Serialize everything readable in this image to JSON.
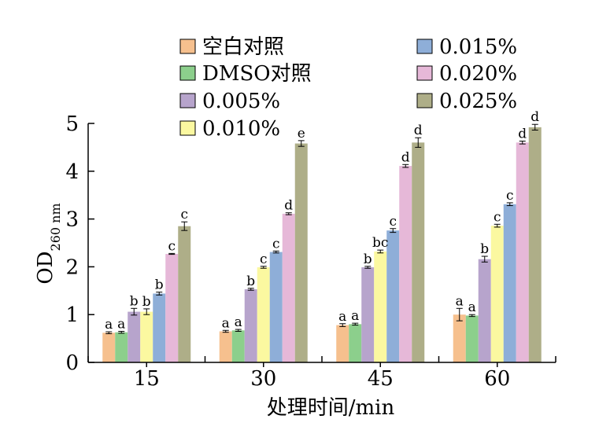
{
  "chart_data": {
    "type": "bar",
    "title": "",
    "xlabel": "处理时间/min",
    "ylabel": {
      "main": "OD",
      "sub": "260 nm"
    },
    "ylim": [
      0,
      5
    ],
    "yticks": [
      "0",
      "1",
      "2",
      "3",
      "4",
      "5"
    ],
    "categories": [
      "15",
      "30",
      "45",
      "60"
    ],
    "legend_position": "top",
    "series": [
      {
        "name": "空白对照",
        "color": "#f6c08e",
        "values": [
          0.62,
          0.65,
          0.78,
          1.0
        ],
        "errors": [
          0.02,
          0.02,
          0.03,
          0.13
        ],
        "labels": [
          "a",
          "a",
          "a",
          "a"
        ]
      },
      {
        "name": "DMSO对照",
        "color": "#8ccf8c",
        "values": [
          0.63,
          0.67,
          0.8,
          0.98
        ],
        "errors": [
          0.02,
          0.02,
          0.02,
          0.02
        ],
        "labels": [
          "a",
          "a",
          "a",
          "a"
        ]
      },
      {
        "name": "0.005%",
        "color": "#b7a4cc",
        "values": [
          1.06,
          1.53,
          1.99,
          2.16
        ],
        "errors": [
          0.07,
          0.02,
          0.02,
          0.06
        ],
        "labels": [
          "b",
          "b",
          "b",
          "b"
        ]
      },
      {
        "name": "0.010%",
        "color": "#fbf8a0",
        "values": [
          1.06,
          1.99,
          2.32,
          2.86
        ],
        "errors": [
          0.06,
          0.02,
          0.03,
          0.03
        ],
        "labels": [
          "b",
          "c",
          "bc",
          "c"
        ]
      },
      {
        "name": "0.015%",
        "color": "#8eaed8",
        "values": [
          1.44,
          2.31,
          2.76,
          3.31
        ],
        "errors": [
          0.03,
          0.02,
          0.04,
          0.03
        ],
        "labels": [
          "b",
          "c",
          "c",
          "c"
        ]
      },
      {
        "name": "0.020%",
        "color": "#e6b8d8",
        "values": [
          2.27,
          3.11,
          4.11,
          4.6
        ],
        "errors": [
          0.01,
          0.02,
          0.03,
          0.03
        ],
        "labels": [
          "c",
          "d",
          "d",
          "d"
        ]
      },
      {
        "name": "0.025%",
        "color": "#aeae88",
        "values": [
          2.85,
          4.58,
          4.6,
          4.92
        ],
        "errors": [
          0.09,
          0.06,
          0.1,
          0.06
        ],
        "labels": [
          "c",
          "e",
          "d",
          "d"
        ]
      }
    ]
  }
}
